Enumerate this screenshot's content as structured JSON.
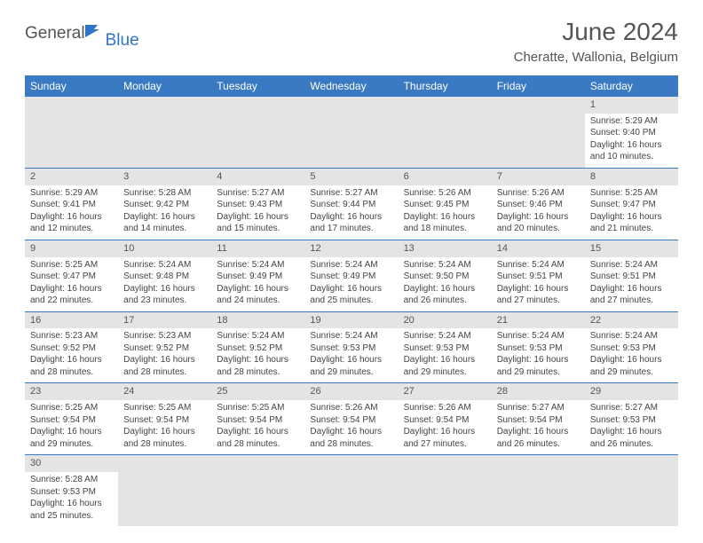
{
  "logo": {
    "general": "General",
    "blue": "Blue"
  },
  "title": "June 2024",
  "location": "Cheratte, Wallonia, Belgium",
  "colors": {
    "header_bg": "#3a7ac2",
    "header_fg": "#ffffff",
    "daynum_bg": "#e4e4e4",
    "border": "#3a7ac2",
    "text_muted": "#555555"
  },
  "weekdays": [
    "Sunday",
    "Monday",
    "Tuesday",
    "Wednesday",
    "Thursday",
    "Friday",
    "Saturday"
  ],
  "days": [
    {
      "n": 1,
      "sr": "5:29 AM",
      "ss": "9:40 PM",
      "dl": "16 hours and 10 minutes."
    },
    {
      "n": 2,
      "sr": "5:29 AM",
      "ss": "9:41 PM",
      "dl": "16 hours and 12 minutes."
    },
    {
      "n": 3,
      "sr": "5:28 AM",
      "ss": "9:42 PM",
      "dl": "16 hours and 14 minutes."
    },
    {
      "n": 4,
      "sr": "5:27 AM",
      "ss": "9:43 PM",
      "dl": "16 hours and 15 minutes."
    },
    {
      "n": 5,
      "sr": "5:27 AM",
      "ss": "9:44 PM",
      "dl": "16 hours and 17 minutes."
    },
    {
      "n": 6,
      "sr": "5:26 AM",
      "ss": "9:45 PM",
      "dl": "16 hours and 18 minutes."
    },
    {
      "n": 7,
      "sr": "5:26 AM",
      "ss": "9:46 PM",
      "dl": "16 hours and 20 minutes."
    },
    {
      "n": 8,
      "sr": "5:25 AM",
      "ss": "9:47 PM",
      "dl": "16 hours and 21 minutes."
    },
    {
      "n": 9,
      "sr": "5:25 AM",
      "ss": "9:47 PM",
      "dl": "16 hours and 22 minutes."
    },
    {
      "n": 10,
      "sr": "5:24 AM",
      "ss": "9:48 PM",
      "dl": "16 hours and 23 minutes."
    },
    {
      "n": 11,
      "sr": "5:24 AM",
      "ss": "9:49 PM",
      "dl": "16 hours and 24 minutes."
    },
    {
      "n": 12,
      "sr": "5:24 AM",
      "ss": "9:49 PM",
      "dl": "16 hours and 25 minutes."
    },
    {
      "n": 13,
      "sr": "5:24 AM",
      "ss": "9:50 PM",
      "dl": "16 hours and 26 minutes."
    },
    {
      "n": 14,
      "sr": "5:24 AM",
      "ss": "9:51 PM",
      "dl": "16 hours and 27 minutes."
    },
    {
      "n": 15,
      "sr": "5:24 AM",
      "ss": "9:51 PM",
      "dl": "16 hours and 27 minutes."
    },
    {
      "n": 16,
      "sr": "5:23 AM",
      "ss": "9:52 PM",
      "dl": "16 hours and 28 minutes."
    },
    {
      "n": 17,
      "sr": "5:23 AM",
      "ss": "9:52 PM",
      "dl": "16 hours and 28 minutes."
    },
    {
      "n": 18,
      "sr": "5:24 AM",
      "ss": "9:52 PM",
      "dl": "16 hours and 28 minutes."
    },
    {
      "n": 19,
      "sr": "5:24 AM",
      "ss": "9:53 PM",
      "dl": "16 hours and 29 minutes."
    },
    {
      "n": 20,
      "sr": "5:24 AM",
      "ss": "9:53 PM",
      "dl": "16 hours and 29 minutes."
    },
    {
      "n": 21,
      "sr": "5:24 AM",
      "ss": "9:53 PM",
      "dl": "16 hours and 29 minutes."
    },
    {
      "n": 22,
      "sr": "5:24 AM",
      "ss": "9:53 PM",
      "dl": "16 hours and 29 minutes."
    },
    {
      "n": 23,
      "sr": "5:25 AM",
      "ss": "9:54 PM",
      "dl": "16 hours and 29 minutes."
    },
    {
      "n": 24,
      "sr": "5:25 AM",
      "ss": "9:54 PM",
      "dl": "16 hours and 28 minutes."
    },
    {
      "n": 25,
      "sr": "5:25 AM",
      "ss": "9:54 PM",
      "dl": "16 hours and 28 minutes."
    },
    {
      "n": 26,
      "sr": "5:26 AM",
      "ss": "9:54 PM",
      "dl": "16 hours and 28 minutes."
    },
    {
      "n": 27,
      "sr": "5:26 AM",
      "ss": "9:54 PM",
      "dl": "16 hours and 27 minutes."
    },
    {
      "n": 28,
      "sr": "5:27 AM",
      "ss": "9:54 PM",
      "dl": "16 hours and 26 minutes."
    },
    {
      "n": 29,
      "sr": "5:27 AM",
      "ss": "9:53 PM",
      "dl": "16 hours and 26 minutes."
    },
    {
      "n": 30,
      "sr": "5:28 AM",
      "ss": "9:53 PM",
      "dl": "16 hours and 25 minutes."
    }
  ],
  "labels": {
    "sunrise": "Sunrise:",
    "sunset": "Sunset:",
    "daylight": "Daylight:"
  },
  "layout": {
    "first_day_of_week_index": 6,
    "rows": 6,
    "cols": 7
  }
}
